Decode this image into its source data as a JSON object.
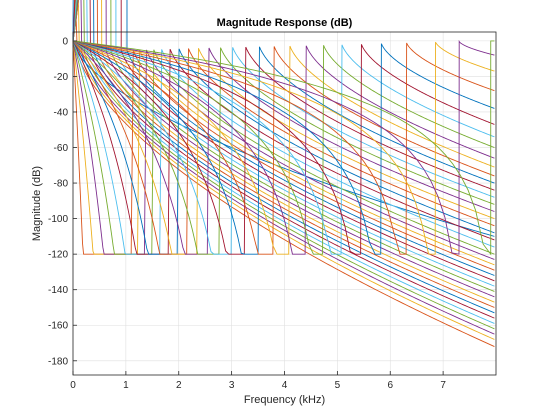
{
  "chart_data": {
    "type": "line",
    "title": "Magnitude Response (dB)",
    "xlabel": "Frequency (kHz)",
    "ylabel": "Magnitude (dB)",
    "xlim": [
      0,
      8
    ],
    "ylim": [
      -188,
      5
    ],
    "xticks": [
      0,
      1,
      2,
      3,
      4,
      5,
      6,
      7
    ],
    "yticks": [
      0,
      -20,
      -40,
      -60,
      -80,
      -100,
      -120,
      -140,
      -160,
      -180
    ],
    "grid": true,
    "colors": [
      "#0072BD",
      "#D95319",
      "#EDB120",
      "#7E2F8E",
      "#77AC30",
      "#4DBEEE",
      "#A2142F"
    ],
    "series": [
      {
        "peak_khz": 0.0,
        "end_db": -110
      },
      {
        "peak_khz": 0.035,
        "end_db": -172
      },
      {
        "peak_khz": 0.075,
        "end_db": -168
      },
      {
        "peak_khz": 0.12,
        "end_db": -165
      },
      {
        "peak_khz": 0.17,
        "end_db": -162
      },
      {
        "peak_khz": 0.225,
        "end_db": -159
      },
      {
        "peak_khz": 0.285,
        "end_db": -156
      },
      {
        "peak_khz": 0.35,
        "end_db": -153
      },
      {
        "peak_khz": 0.42,
        "end_db": -150
      },
      {
        "peak_khz": 0.5,
        "end_db": -147
      },
      {
        "peak_khz": 0.585,
        "end_db": -144
      },
      {
        "peak_khz": 0.675,
        "end_db": -141
      },
      {
        "peak_khz": 0.77,
        "end_db": -138
      },
      {
        "peak_khz": 0.87,
        "end_db": -135
      },
      {
        "peak_khz": 0.98,
        "end_db": -132
      },
      {
        "peak_khz": 1.1,
        "end_db": -129
      },
      {
        "peak_khz": 1.22,
        "end_db": -126
      },
      {
        "peak_khz": 1.35,
        "end_db": -123
      },
      {
        "peak_khz": 1.49,
        "end_db": -120
      },
      {
        "peak_khz": 1.64,
        "end_db": -116
      },
      {
        "peak_khz": 1.8,
        "end_db": -112
      },
      {
        "peak_khz": 1.97,
        "end_db": -108
      },
      {
        "peak_khz": 2.15,
        "end_db": -104
      },
      {
        "peak_khz": 2.34,
        "end_db": -100
      },
      {
        "peak_khz": 2.54,
        "end_db": -96
      },
      {
        "peak_khz": 2.76,
        "end_db": -92
      },
      {
        "peak_khz": 2.99,
        "end_db": -88
      },
      {
        "peak_khz": 3.24,
        "end_db": -84
      },
      {
        "peak_khz": 3.5,
        "end_db": -80
      },
      {
        "peak_khz": 3.78,
        "end_db": -76
      },
      {
        "peak_khz": 4.08,
        "end_db": -71
      },
      {
        "peak_khz": 4.39,
        "end_db": -66
      },
      {
        "peak_khz": 4.72,
        "end_db": -60
      },
      {
        "peak_khz": 5.07,
        "end_db": -54
      },
      {
        "peak_khz": 5.44,
        "end_db": -47
      },
      {
        "peak_khz": 5.82,
        "end_db": -38
      },
      {
        "peak_khz": 6.3,
        "end_db": -28
      },
      {
        "peak_khz": 6.85,
        "end_db": -17
      },
      {
        "peak_khz": 7.3,
        "end_db": -8
      },
      {
        "peak_khz": 7.9,
        "end_db": 0
      }
    ]
  }
}
